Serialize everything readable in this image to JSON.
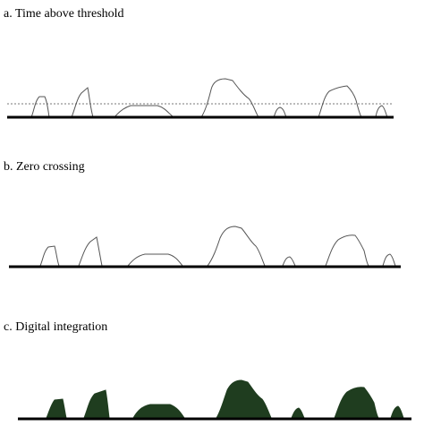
{
  "panels": [
    {
      "id": "a",
      "title": "a. Time above threshold",
      "style": "outline",
      "threshold": true
    },
    {
      "id": "b",
      "title": "b. Zero crossing",
      "style": "outline",
      "threshold": false
    },
    {
      "id": "c",
      "title": "c. Digital integration",
      "style": "filled",
      "threshold": false
    }
  ],
  "colors": {
    "baseline": "#000000",
    "pulse_outline": "#555555",
    "threshold_line": "#777777",
    "fill": "#1f3d1f"
  }
}
